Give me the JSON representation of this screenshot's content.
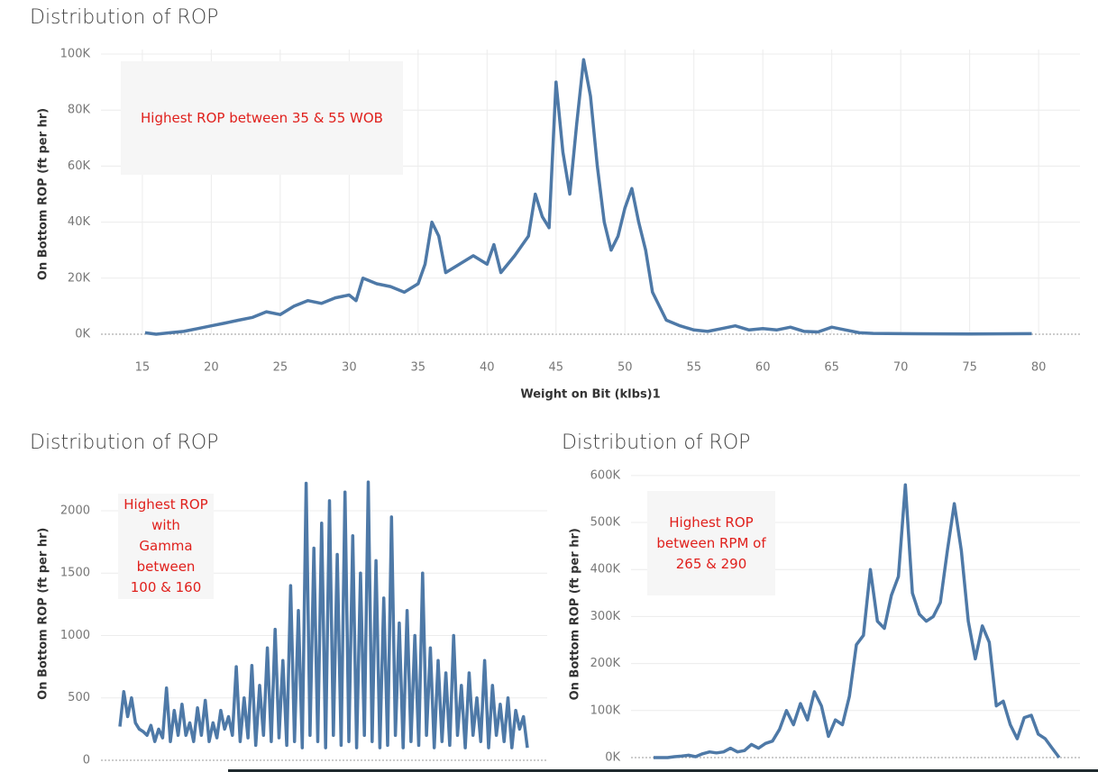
{
  "chart_data": [
    {
      "type": "line",
      "title": "Distribution of ROP",
      "x_label": "Weight on Bit (klbs)1",
      "y_label": "On Bottom ROP (ft per hr)",
      "annotation": "Highest ROP between 35 & 55 WOB",
      "color": "#4e79a7",
      "grid": true,
      "x": [
        15.2,
        16,
        17,
        18,
        19,
        20,
        21,
        22,
        23,
        24,
        25,
        26,
        27,
        28,
        29,
        30,
        30.5,
        31,
        32,
        33,
        34,
        35,
        35.5,
        36,
        36.5,
        37,
        38,
        39,
        40,
        40.5,
        41,
        42,
        43,
        43.5,
        44,
        44.5,
        45,
        45.5,
        46,
        46.5,
        47,
        47.5,
        48,
        48.5,
        49,
        49.5,
        50,
        50.5,
        51,
        51.5,
        52,
        53,
        54,
        55,
        56,
        57,
        58,
        59,
        60,
        61,
        62,
        63,
        64,
        65,
        66,
        67,
        68,
        70,
        75,
        79.5
      ],
      "values": [
        500,
        0,
        500,
        1000,
        2000,
        3000,
        4000,
        5000,
        6000,
        8000,
        7000,
        10000,
        12000,
        11000,
        13000,
        14000,
        12000,
        20000,
        18000,
        17000,
        15000,
        18000,
        25000,
        40000,
        35000,
        22000,
        25000,
        28000,
        25000,
        32000,
        22000,
        28000,
        35000,
        50000,
        42000,
        38000,
        90000,
        65000,
        50000,
        75000,
        98000,
        85000,
        60000,
        40000,
        30000,
        35000,
        45000,
        52000,
        40000,
        30000,
        15000,
        5000,
        3000,
        1500,
        1000,
        2000,
        3000,
        1500,
        2000,
        1500,
        2500,
        1000,
        800,
        2500,
        1500,
        500,
        300,
        200,
        100,
        200
      ],
      "xlim": [
        12,
        83
      ],
      "xticks": [
        15,
        20,
        25,
        30,
        35,
        40,
        45,
        50,
        55,
        60,
        65,
        70,
        75,
        80
      ],
      "ylim": [
        0,
        100000
      ],
      "yticks": [
        {
          "value": 0,
          "label": "0K"
        },
        {
          "value": 20000,
          "label": "20K"
        },
        {
          "value": 40000,
          "label": "40K"
        },
        {
          "value": 60000,
          "label": "60K"
        },
        {
          "value": 80000,
          "label": "80K"
        },
        {
          "value": 100000,
          "label": "100K"
        }
      ]
    },
    {
      "type": "line",
      "title": "Distribution of ROP",
      "y_label": "On Bottom ROP (ft per hr)",
      "annotation": "Highest ROP with Gamma between 100 & 160",
      "color": "#4e79a7",
      "grid": true,
      "values": [
        270,
        550,
        350,
        500,
        300,
        250,
        230,
        200,
        280,
        150,
        250,
        180,
        580,
        150,
        400,
        200,
        450,
        200,
        300,
        150,
        420,
        200,
        480,
        150,
        300,
        180,
        400,
        250,
        350,
        200,
        750,
        150,
        500,
        180,
        760,
        120,
        600,
        200,
        900,
        150,
        1050,
        180,
        800,
        120,
        1400,
        150,
        1200,
        100,
        2220,
        200,
        1700,
        150,
        1900,
        100,
        2080,
        200,
        1650,
        120,
        2150,
        150,
        1800,
        100,
        1500,
        200,
        2230,
        150,
        1600,
        100,
        1300,
        120,
        1950,
        200,
        1100,
        100,
        1200,
        150,
        1000,
        120,
        1500,
        200,
        900,
        100,
        800,
        150,
        700,
        120,
        1000,
        200,
        600,
        100,
        700,
        200,
        500,
        150,
        800,
        100,
        600,
        200,
        450,
        150,
        500,
        100,
        400,
        250,
        350,
        100
      ],
      "ylim": [
        0,
        2350
      ],
      "yticks": [
        0,
        500,
        1000,
        1500,
        2000
      ]
    },
    {
      "type": "line",
      "title": "Distribution of ROP",
      "y_label": "On Bottom ROP (ft per hr)",
      "annotation": "Highest ROP between RPM of 265 & 290",
      "color": "#4e79a7",
      "grid": true,
      "values": [
        0,
        0,
        0,
        2000,
        3000,
        5000,
        2000,
        8000,
        12000,
        10000,
        12000,
        20000,
        12000,
        15000,
        28000,
        20000,
        30000,
        35000,
        60000,
        100000,
        70000,
        115000,
        80000,
        140000,
        110000,
        45000,
        80000,
        70000,
        130000,
        240000,
        260000,
        400000,
        290000,
        275000,
        345000,
        385000,
        580000,
        350000,
        305000,
        290000,
        300000,
        330000,
        440000,
        540000,
        440000,
        290000,
        210000,
        280000,
        245000,
        110000,
        120000,
        70000,
        40000,
        85000,
        90000,
        50000,
        40000,
        20000,
        0
      ],
      "ylim": [
        0,
        610000
      ],
      "yticks": [
        {
          "value": 0,
          "label": "0K"
        },
        {
          "value": 100000,
          "label": "100K"
        },
        {
          "value": 200000,
          "label": "200K"
        },
        {
          "value": 300000,
          "label": "300K"
        },
        {
          "value": 400000,
          "label": "400K"
        },
        {
          "value": 500000,
          "label": "500K"
        },
        {
          "value": 600000,
          "label": "600K"
        }
      ]
    }
  ]
}
